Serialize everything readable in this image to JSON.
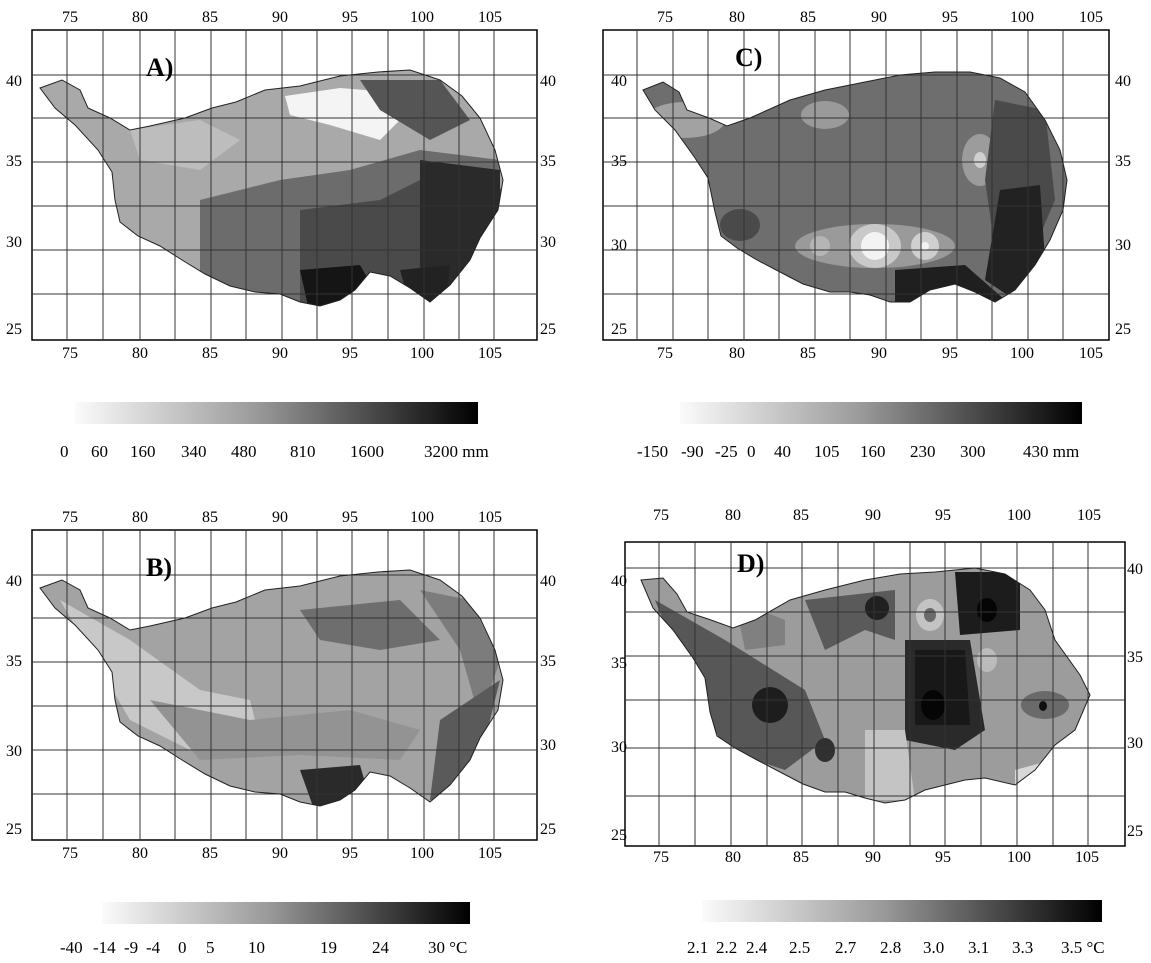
{
  "panels": [
    {
      "id": "A",
      "letter": "A)",
      "lon_ticks": [
        "75",
        "80",
        "85",
        "90",
        "95",
        "100",
        "105"
      ],
      "lat_ticks": [
        "40",
        "35",
        "30",
        "25"
      ],
      "legend": {
        "labels": [
          "0",
          "60",
          "160",
          "340",
          "480",
          "810",
          "1600",
          "3200 mm"
        ],
        "color_from": "#ffffff",
        "color_to": "#000000"
      }
    },
    {
      "id": "C",
      "letter": "C)",
      "lon_ticks": [
        "75",
        "80",
        "85",
        "90",
        "95",
        "100",
        "105"
      ],
      "lat_ticks": [
        "40",
        "35",
        "30",
        "25"
      ],
      "legend": {
        "labels": [
          "-150",
          "-90",
          "-25",
          "0",
          "40",
          "105",
          "160",
          "230",
          "300",
          "430 mm"
        ],
        "color_from": "#ffffff",
        "color_to": "#000000"
      }
    },
    {
      "id": "B",
      "letter": "B)",
      "lon_ticks": [
        "75",
        "80",
        "85",
        "90",
        "95",
        "100",
        "105"
      ],
      "lat_ticks": [
        "40",
        "35",
        "30",
        "25"
      ],
      "legend": {
        "labels": [
          "-40",
          "-14",
          "-9",
          "-4",
          "0",
          "5",
          "10",
          "19",
          "24",
          "30 °C"
        ],
        "color_from": "#ffffff",
        "color_to": "#000000"
      }
    },
    {
      "id": "D",
      "letter": "D)",
      "lon_ticks": [
        "75",
        "80",
        "85",
        "90",
        "95",
        "100",
        "105"
      ],
      "lat_ticks": [
        "40",
        "35",
        "30",
        "25"
      ],
      "legend": {
        "labels": [
          "2.1",
          "2.2",
          "2.4",
          "2.5",
          "2.7",
          "2.8",
          "3.0",
          "3.1",
          "3.3",
          "3.5 °C"
        ],
        "color_from": "#ffffff",
        "color_to": "#000000"
      }
    }
  ]
}
